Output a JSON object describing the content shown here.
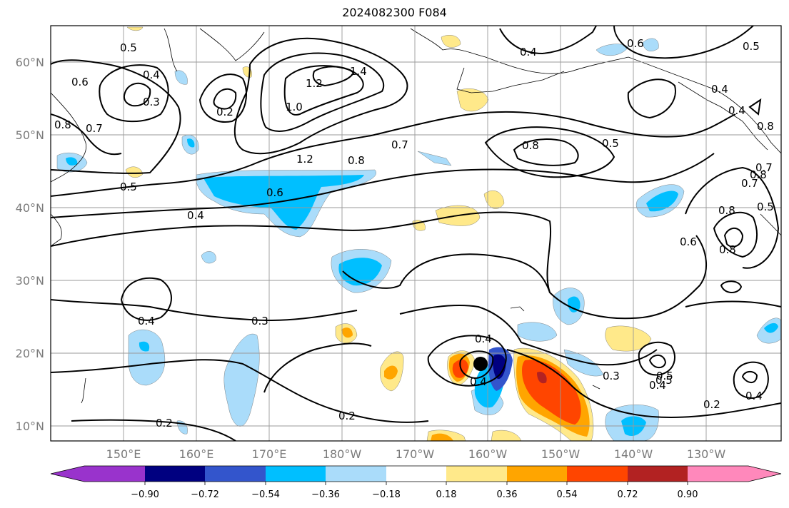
{
  "title": "2024082300 F084",
  "lat_labels": [
    "60°N",
    "50°N",
    "40°N",
    "30°N",
    "20°N",
    "10°N"
  ],
  "lon_labels": [
    "150°E",
    "160°E",
    "170°E",
    "180°W",
    "170°W",
    "160°W",
    "150°W",
    "140°W",
    "130°W"
  ],
  "contour_labels": [
    "0.5",
    "0.4",
    "0.3",
    "0.2",
    "0.6",
    "0.7",
    "0.8",
    "1.0",
    "1.2",
    "1.4",
    "0.4",
    "0.6",
    "0.5",
    "0.4",
    "0.4",
    "0.8",
    "0.7",
    "0.5",
    "1.2",
    "0.8",
    "0.7",
    "0.6",
    "0.5",
    "0.4",
    "0.8",
    "0.5",
    "0.8",
    "0.8",
    "0.6",
    "0.8",
    "0.7",
    "0.5",
    "0.4",
    "0.3",
    "0.4",
    "0.2",
    "0.2",
    "0.4",
    "0.3",
    "0.5",
    "0.4",
    "0.2",
    "0.4"
  ],
  "colorbar": {
    "ticks": [
      "−0.90",
      "−0.72",
      "−0.54",
      "−0.36",
      "−0.18",
      "0.18",
      "0.36",
      "0.54",
      "0.72",
      "0.90"
    ],
    "colors": [
      "#9933cc",
      "#000080",
      "#3355cc",
      "#00bfff",
      "#aadcfa",
      "#ffffff",
      "#ffe98a",
      "#ffa500",
      "#ff4500",
      "#b22222",
      "#ff88bb"
    ]
  },
  "chart_data": {
    "type": "map",
    "title": "2024082300 F084",
    "projection": "cylindrical",
    "lat_range": [
      8,
      65
    ],
    "lon_range": [
      140,
      245
    ],
    "lat_ticks": [
      10,
      20,
      30,
      40,
      50,
      60
    ],
    "lon_ticks": [
      "150°E",
      "160°E",
      "170°E",
      "180°W",
      "170°W",
      "160°W",
      "150°W",
      "140°W",
      "130°W"
    ],
    "grid": true,
    "contour_levels_labeled": [
      0.2,
      0.3,
      0.4,
      0.5,
      0.6,
      0.7,
      0.8,
      1.0,
      1.2,
      1.4
    ],
    "shading_levels": [
      -0.9,
      -0.72,
      -0.54,
      -0.36,
      -0.18,
      0.18,
      0.36,
      0.54,
      0.72,
      0.9
    ],
    "marker": {
      "lat": 18.5,
      "lon": -160.2,
      "symbol": "filled circle"
    }
  }
}
